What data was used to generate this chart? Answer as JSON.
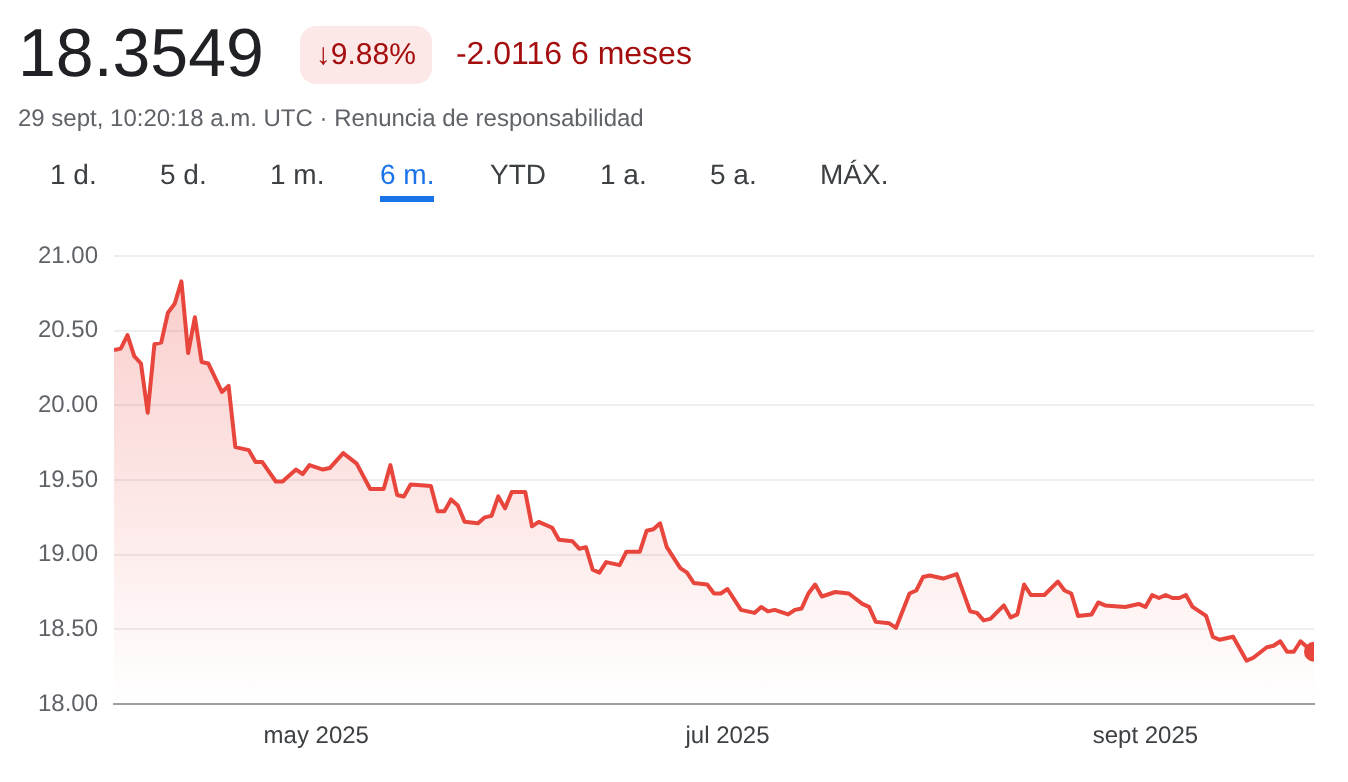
{
  "chart_data": {
    "type": "area",
    "title": "18.3549",
    "subtitle": "29 sept, 10:20:18 a.m. UTC · Renuncia de responsabilidad",
    "annotations": [
      "↓9.88%",
      "-2.0116 6 meses",
      "1 d.",
      "5 d.",
      "1 m.",
      "6 m.",
      "YTD",
      "1 a.",
      "5 a.",
      "MÁX."
    ],
    "x": [
      "2025-04-01",
      "2025-04-02",
      "2025-04-03",
      "2025-04-04",
      "2025-04-05",
      "2025-04-06",
      "2025-04-07",
      "2025-04-08",
      "2025-04-09",
      "2025-04-10",
      "2025-04-11",
      "2025-04-12",
      "2025-04-13",
      "2025-04-14",
      "2025-04-15",
      "2025-04-17",
      "2025-04-18",
      "2025-04-19",
      "2025-04-21",
      "2025-04-22",
      "2025-04-23",
      "2025-04-25",
      "2025-04-26",
      "2025-04-28",
      "2025-04-29",
      "2025-04-30",
      "2025-05-02",
      "2025-05-03",
      "2025-05-05",
      "2025-05-07",
      "2025-05-09",
      "2025-05-11",
      "2025-05-12",
      "2025-05-13",
      "2025-05-14",
      "2025-05-15",
      "2025-05-18",
      "2025-05-19",
      "2025-05-20",
      "2025-05-21",
      "2025-05-22",
      "2025-05-23",
      "2025-05-25",
      "2025-05-26",
      "2025-05-27",
      "2025-05-28",
      "2025-05-29",
      "2025-05-30",
      "2025-06-01",
      "2025-06-02",
      "2025-06-03",
      "2025-06-05",
      "2025-06-06",
      "2025-06-08",
      "2025-06-09",
      "2025-06-10",
      "2025-06-11",
      "2025-06-12",
      "2025-06-13",
      "2025-06-15",
      "2025-06-16",
      "2025-06-18",
      "2025-06-19",
      "2025-06-20",
      "2025-06-21",
      "2025-06-22",
      "2025-06-24",
      "2025-06-25",
      "2025-06-26",
      "2025-06-28",
      "2025-06-29",
      "2025-06-30",
      "2025-07-01",
      "2025-07-03",
      "2025-07-05",
      "2025-07-06",
      "2025-07-07",
      "2025-07-08",
      "2025-07-10",
      "2025-07-11",
      "2025-07-12",
      "2025-07-13",
      "2025-07-14",
      "2025-07-15",
      "2025-07-17",
      "2025-07-19",
      "2025-07-21",
      "2025-07-22",
      "2025-07-23",
      "2025-07-25",
      "2025-07-26",
      "2025-07-28",
      "2025-07-29",
      "2025-07-30",
      "2025-07-31",
      "2025-08-02",
      "2025-08-04",
      "2025-08-06",
      "2025-08-07",
      "2025-08-08",
      "2025-08-09",
      "2025-08-11",
      "2025-08-12",
      "2025-08-13",
      "2025-08-14",
      "2025-08-15",
      "2025-08-17",
      "2025-08-19",
      "2025-08-20",
      "2025-08-21",
      "2025-08-22",
      "2025-08-24",
      "2025-08-25",
      "2025-08-26",
      "2025-08-29",
      "2025-08-31",
      "2025-09-01",
      "2025-09-02",
      "2025-09-03",
      "2025-09-04",
      "2025-09-05",
      "2025-09-06",
      "2025-09-07",
      "2025-09-08",
      "2025-09-10",
      "2025-09-11",
      "2025-09-12",
      "2025-09-14",
      "2025-09-16",
      "2025-09-17",
      "2025-09-19",
      "2025-09-20",
      "2025-09-21",
      "2025-09-22",
      "2025-09-23",
      "2025-09-24",
      "2025-09-25",
      "2025-09-26"
    ],
    "series": [
      {
        "color": "#e8453c",
        "values": [
          20.37,
          20.38,
          20.47,
          20.33,
          20.28,
          19.95,
          20.41,
          20.42,
          20.62,
          20.68,
          20.83,
          20.35,
          20.59,
          20.29,
          20.28,
          20.09,
          20.13,
          19.72,
          19.7,
          19.62,
          19.62,
          19.49,
          19.49,
          19.57,
          19.54,
          19.6,
          19.57,
          19.58,
          19.68,
          19.61,
          19.44,
          19.44,
          19.6,
          19.4,
          19.39,
          19.47,
          19.46,
          19.29,
          19.29,
          19.37,
          19.33,
          19.22,
          19.21,
          19.25,
          19.26,
          19.39,
          19.31,
          19.42,
          19.42,
          19.19,
          19.22,
          19.18,
          19.1,
          19.09,
          19.04,
          19.05,
          18.9,
          18.88,
          18.95,
          18.93,
          19.02,
          19.02,
          19.16,
          19.17,
          19.21,
          19.05,
          18.91,
          18.88,
          18.81,
          18.8,
          18.74,
          18.74,
          18.77,
          18.63,
          18.61,
          18.65,
          18.62,
          18.63,
          18.6,
          18.63,
          18.64,
          18.74,
          18.8,
          18.72,
          18.75,
          18.74,
          18.67,
          18.65,
          18.55,
          18.54,
          18.51,
          18.74,
          18.76,
          18.85,
          18.86,
          18.84,
          18.87,
          18.62,
          18.61,
          18.56,
          18.57,
          18.66,
          18.58,
          18.6,
          18.8,
          18.73,
          18.73,
          18.82,
          18.76,
          18.74,
          18.59,
          18.6,
          18.68,
          18.66,
          18.65,
          18.67,
          18.65,
          18.73,
          18.71,
          18.73,
          18.71,
          18.71,
          18.73,
          18.65,
          18.59,
          18.45,
          18.43,
          18.45,
          18.29,
          18.31,
          18.38,
          18.39,
          18.42,
          18.35,
          18.35,
          18.42,
          18.38,
          18.35
        ]
      }
    ],
    "xlim": [
      "2025-04-01",
      "2025-09-26"
    ],
    "xticks": [
      {
        "value": "2025-05-01",
        "label": "may 2025"
      },
      {
        "value": "2025-07-01",
        "label": "jul 2025"
      },
      {
        "value": "2025-09-01",
        "label": "sept 2025"
      }
    ],
    "ylim": [
      18,
      21
    ],
    "yticks": [
      {
        "value": 18,
        "label": "18.00"
      },
      {
        "value": 18.5,
        "label": "18.50"
      },
      {
        "value": 19,
        "label": "19.00"
      },
      {
        "value": 19.5,
        "label": "19.50"
      },
      {
        "value": 20,
        "label": "20.00"
      },
      {
        "value": 20.5,
        "label": "20.50"
      },
      {
        "value": 21,
        "label": "21.00"
      }
    ],
    "grid": "y",
    "legend": false,
    "marker": "none",
    "line_style": "solid"
  }
}
